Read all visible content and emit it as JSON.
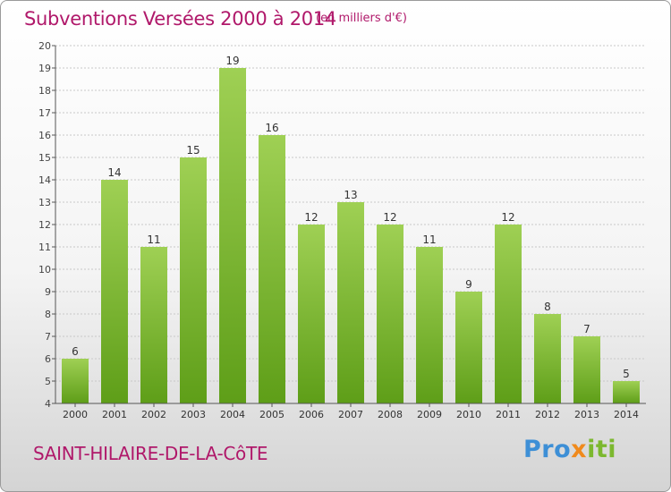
{
  "header": {
    "title": "Subventions Versées 2000 à 2014",
    "subtitle": "(en milliers d'€)"
  },
  "footer": {
    "place": "SAINT-HILAIRE-DE-LA-CôTE",
    "logo": {
      "p1": "Pro",
      "p2": "x",
      "p3": "iti"
    }
  },
  "colors": {
    "title": "#b0186a",
    "bar_top": "#9fd054",
    "bar_bottom": "#5e9e18",
    "grid": "#c8c8c8",
    "axis": "#555555"
  },
  "chart_data": {
    "type": "bar",
    "title": "Subventions Versées 2000 à 2014",
    "xlabel": "",
    "ylabel": "",
    "categories": [
      "2000",
      "2001",
      "2002",
      "2003",
      "2004",
      "2005",
      "2006",
      "2007",
      "2008",
      "2009",
      "2010",
      "2011",
      "2012",
      "2013",
      "2014"
    ],
    "values": [
      6,
      14,
      11,
      15,
      19,
      16,
      12,
      13,
      12,
      11,
      9,
      12,
      8,
      7,
      5
    ],
    "ylim": [
      4,
      20
    ],
    "yticks": [
      4,
      5,
      6,
      7,
      8,
      9,
      10,
      11,
      12,
      13,
      14,
      15,
      16,
      17,
      18,
      19,
      20
    ],
    "grid": true,
    "data_labels": true
  }
}
